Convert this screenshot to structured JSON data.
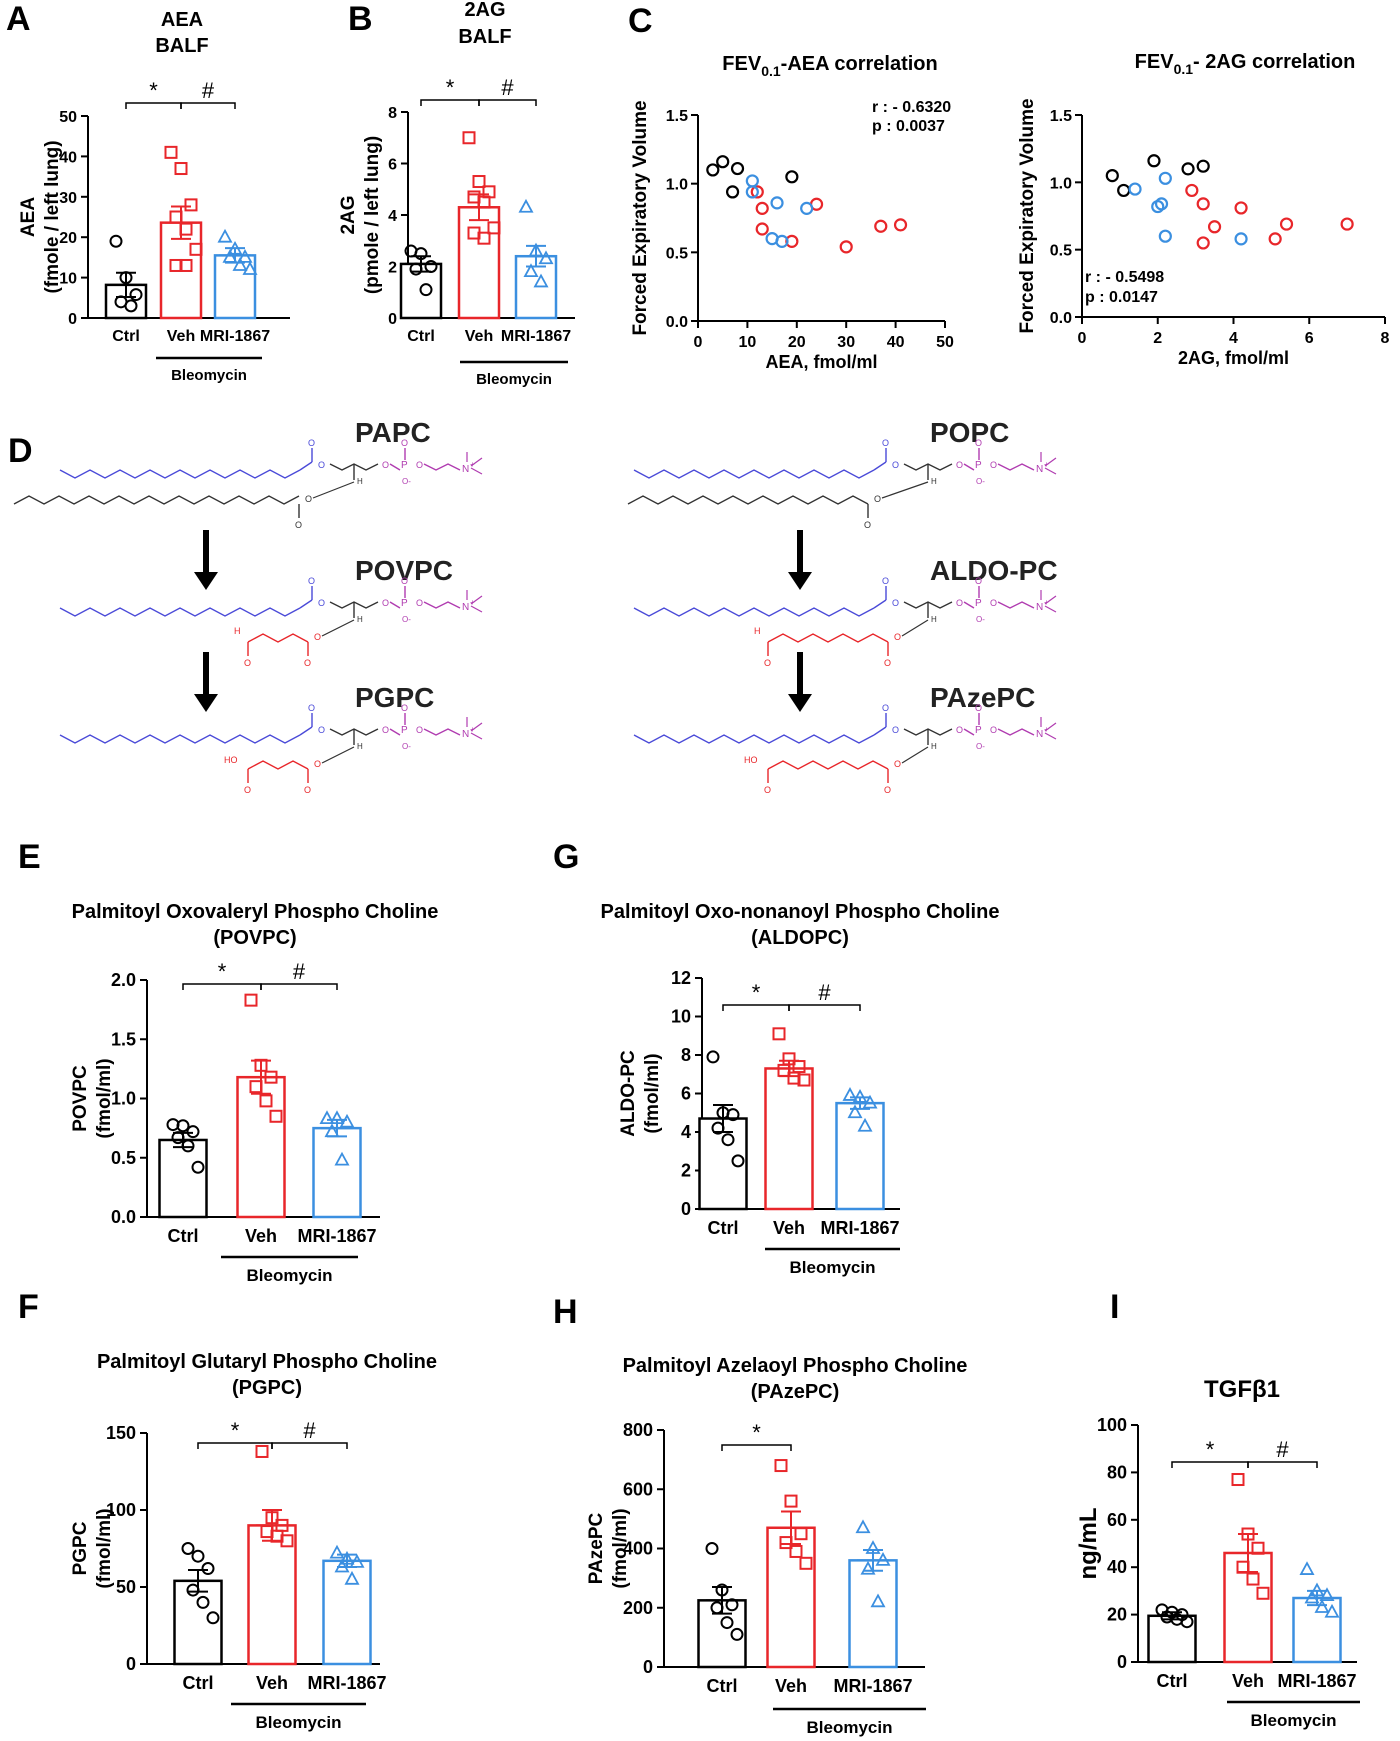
{
  "panel_letters": [
    "A",
    "B",
    "C",
    "D",
    "E",
    "F",
    "G",
    "H",
    "I"
  ],
  "colors": {
    "ctrl": "#000000",
    "veh": "#e8262a",
    "mri": "#3b8fe0",
    "chain_blue": "#4a4ad8",
    "headgroup": "#b03cb0",
    "oxidized": "#e8262a"
  },
  "group_labels": {
    "ctrl": "Ctrl",
    "veh": "Veh",
    "mri": "MRI-1867",
    "bleomycin": "Bleomycin"
  },
  "significance": {
    "star": "*",
    "hash": "#"
  },
  "chart_data": [
    {
      "id": "A",
      "type": "bar",
      "title": "AEA\nBALF",
      "ylabel": "AEA\n(fmole / left lung)",
      "ylim": [
        0,
        50
      ],
      "yticks": [
        0,
        10,
        20,
        30,
        40,
        50
      ],
      "categories": [
        "Ctrl",
        "Veh",
        "MRI-1867"
      ],
      "means": [
        8.2,
        23.6,
        15.5
      ],
      "sem": [
        3.0,
        4.0,
        1.8
      ],
      "points": [
        [
          19.0,
          10.0,
          5.8,
          4.0,
          3.0
        ],
        [
          41.0,
          37.0,
          28.0,
          25.0,
          22.0,
          17.0,
          13.0,
          13.0
        ],
        [
          20.0,
          17.0,
          15.0,
          15.0,
          13.0,
          12.0
        ]
      ],
      "sig": [
        {
          "from": 0,
          "to": 1,
          "label": "*"
        },
        {
          "from": 1,
          "to": 2,
          "label": "#"
        }
      ]
    },
    {
      "id": "B",
      "type": "bar",
      "title": "2AG\nBALF",
      "ylabel": "2AG\n(pmole / left lung)",
      "ylim": [
        0,
        8
      ],
      "yticks": [
        0,
        2,
        4,
        6,
        8
      ],
      "categories": [
        "Ctrl",
        "Veh",
        "MRI-1867"
      ],
      "means": [
        2.1,
        4.3,
        2.4
      ],
      "sem": [
        0.3,
        0.5,
        0.4
      ],
      "points": [
        [
          2.6,
          2.5,
          2.0,
          1.9,
          1.1
        ],
        [
          7.0,
          5.3,
          4.9,
          4.7,
          4.5,
          3.5,
          3.3,
          3.1
        ],
        [
          4.3,
          2.6,
          2.3,
          1.8,
          1.4
        ]
      ],
      "sig": [
        {
          "from": 0,
          "to": 1,
          "label": "*"
        },
        {
          "from": 1,
          "to": 2,
          "label": "#"
        }
      ]
    },
    {
      "id": "C1",
      "type": "scatter",
      "title": "FEV0.1-AEA correlation",
      "xlabel": "AEA, fmol/ml",
      "ylabel": "Forced Expiratory Volume",
      "xlim": [
        0,
        50
      ],
      "xticks": [
        0,
        10,
        20,
        30,
        40,
        50
      ],
      "ylim": [
        0,
        1.5
      ],
      "yticks": [
        0.0,
        0.5,
        1.0,
        1.5
      ],
      "annotation": [
        "r : - 0.6320",
        "p : 0.0037"
      ],
      "series": [
        {
          "color": "ctrl",
          "points": [
            [
              3,
              1.1
            ],
            [
              5,
              1.16
            ],
            [
              7,
              0.94
            ],
            [
              8,
              1.11
            ],
            [
              19,
              1.05
            ]
          ]
        },
        {
          "color": "veh",
          "points": [
            [
              12,
              0.94
            ],
            [
              13,
              0.82
            ],
            [
              13,
              0.67
            ],
            [
              19,
              0.58
            ],
            [
              24,
              0.85
            ],
            [
              30,
              0.54
            ],
            [
              37,
              0.69
            ],
            [
              41,
              0.7
            ]
          ]
        },
        {
          "color": "mri",
          "points": [
            [
              11,
              0.94
            ],
            [
              11,
              1.02
            ],
            [
              15,
              0.6
            ],
            [
              16,
              0.86
            ],
            [
              17,
              0.58
            ],
            [
              22,
              0.82
            ]
          ]
        }
      ]
    },
    {
      "id": "C2",
      "type": "scatter",
      "title": "FEV0.1- 2AG correlation",
      "xlabel": "2AG, fmol/ml",
      "ylabel": "Forced Expiratory Volume",
      "xlim": [
        0,
        8
      ],
      "xticks": [
        0,
        2,
        4,
        6,
        8
      ],
      "ylim": [
        0,
        1.5
      ],
      "yticks": [
        0.0,
        0.5,
        1.0,
        1.5
      ],
      "annotation": [
        "r : - 0.5498",
        "p : 0.0147"
      ],
      "series": [
        {
          "color": "ctrl",
          "points": [
            [
              0.8,
              1.05
            ],
            [
              1.1,
              0.94
            ],
            [
              1.9,
              1.16
            ],
            [
              2.8,
              1.1
            ],
            [
              3.2,
              1.12
            ]
          ]
        },
        {
          "color": "veh",
          "points": [
            [
              2.9,
              0.94
            ],
            [
              3.2,
              0.84
            ],
            [
              3.2,
              0.55
            ],
            [
              3.5,
              0.67
            ],
            [
              4.2,
              0.81
            ],
            [
              5.1,
              0.58
            ],
            [
              5.4,
              0.69
            ],
            [
              7.0,
              0.69
            ]
          ]
        },
        {
          "color": "mri",
          "points": [
            [
              1.4,
              0.95
            ],
            [
              2.0,
              0.82
            ],
            [
              2.1,
              0.84
            ],
            [
              2.2,
              1.03
            ],
            [
              2.2,
              0.6
            ],
            [
              4.2,
              0.58
            ]
          ]
        }
      ]
    },
    {
      "id": "E",
      "type": "bar",
      "title": "Palmitoyl Oxovaleryl Phospho Choline\n(POVPC)",
      "ylabel": "POVPC\n(fmol/ml)",
      "ylim": [
        0,
        2.0
      ],
      "yticks": [
        0.0,
        0.5,
        1.0,
        1.5,
        2.0
      ],
      "decimals": 1,
      "categories": [
        "Ctrl",
        "Veh",
        "MRI-1867"
      ],
      "means": [
        0.65,
        1.18,
        0.75
      ],
      "sem": [
        0.06,
        0.14,
        0.07
      ],
      "points": [
        [
          0.78,
          0.77,
          0.72,
          0.67,
          0.6,
          0.42
        ],
        [
          1.83,
          1.28,
          1.18,
          1.1,
          0.98,
          0.85
        ],
        [
          0.83,
          0.83,
          0.8,
          0.72,
          0.48
        ]
      ],
      "sig": [
        {
          "from": 0,
          "to": 1,
          "label": "*"
        },
        {
          "from": 1,
          "to": 2,
          "label": "#"
        }
      ]
    },
    {
      "id": "G",
      "type": "bar",
      "title": "Palmitoyl Oxo-nonanoyl Phospho Choline\n(ALDOPC)",
      "ylabel": "ALDO-PC\n(fmol/ml)",
      "ylim": [
        0,
        12
      ],
      "yticks": [
        0,
        2,
        4,
        6,
        8,
        10,
        12
      ],
      "categories": [
        "Ctrl",
        "Veh",
        "MRI-1867"
      ],
      "means": [
        4.7,
        7.3,
        5.5
      ],
      "sem": [
        0.7,
        0.4,
        0.3
      ],
      "points": [
        [
          7.9,
          5.0,
          4.9,
          4.2,
          3.6,
          2.5
        ],
        [
          9.1,
          7.8,
          7.4,
          7.2,
          6.8,
          6.7
        ],
        [
          5.9,
          5.8,
          5.5,
          5.0,
          4.3
        ]
      ],
      "sig": [
        {
          "from": 0,
          "to": 1,
          "label": "*"
        },
        {
          "from": 1,
          "to": 2,
          "label": "#"
        }
      ]
    },
    {
      "id": "F",
      "type": "bar",
      "title": "Palmitoyl Glutaryl Phospho Choline\n(PGPC)",
      "ylabel": "PGPC\n(fmol/ml)",
      "ylim": [
        0,
        150
      ],
      "yticks": [
        0,
        50,
        100,
        150
      ],
      "categories": [
        "Ctrl",
        "Veh",
        "MRI-1867"
      ],
      "means": [
        54,
        90,
        67
      ],
      "sem": [
        7,
        10,
        4
      ],
      "points": [
        [
          75,
          70,
          62,
          48,
          40,
          30
        ],
        [
          138,
          95,
          90,
          86,
          83,
          80
        ],
        [
          72,
          68,
          66,
          63,
          55
        ]
      ],
      "sig": [
        {
          "from": 0,
          "to": 1,
          "label": "*"
        },
        {
          "from": 1,
          "to": 2,
          "label": "#"
        }
      ]
    },
    {
      "id": "H",
      "type": "bar",
      "title": "Palmitoyl Azelaoyl Phospho Choline\n(PAzePC)",
      "ylabel": "PAzePC\n(fmol/ml)",
      "ylim": [
        0,
        800
      ],
      "yticks": [
        0,
        200,
        400,
        600,
        800
      ],
      "categories": [
        "Ctrl",
        "Veh",
        "MRI-1867"
      ],
      "means": [
        225,
        470,
        360
      ],
      "sem": [
        45,
        55,
        35
      ],
      "points": [
        [
          400,
          260,
          210,
          200,
          150,
          110
        ],
        [
          680,
          560,
          450,
          420,
          390,
          350
        ],
        [
          470,
          400,
          360,
          330,
          220
        ]
      ],
      "sig": [
        {
          "from": 0,
          "to": 1,
          "label": "*"
        }
      ]
    },
    {
      "id": "I",
      "type": "bar",
      "title": "TGFβ1",
      "ylabel": "ng/mL",
      "ylim": [
        0,
        100
      ],
      "yticks": [
        0,
        20,
        40,
        60,
        80,
        100
      ],
      "categories": [
        "Ctrl",
        "Veh",
        "MRI-1867"
      ],
      "means": [
        19.5,
        46,
        27
      ],
      "sem": [
        1.5,
        8,
        3
      ],
      "points": [
        [
          22,
          21,
          20,
          19,
          18,
          17
        ],
        [
          77,
          54,
          48,
          40,
          35,
          29
        ],
        [
          39,
          30,
          28,
          27,
          23,
          21
        ]
      ],
      "sig": [
        {
          "from": 0,
          "to": 1,
          "label": "*"
        },
        {
          "from": 1,
          "to": 2,
          "label": "#"
        }
      ]
    }
  ],
  "scheme": {
    "titles": {
      "papc": "PAPC",
      "povpc": "POVPC",
      "pgpc": "PGPC",
      "popc": "POPC",
      "aldopc": "ALDO-PC",
      "pazepc": "PAzePC"
    },
    "atoms": {
      "o": "O",
      "h": "H",
      "p": "P",
      "n": "N",
      "ho": "HO",
      "oh": "OH",
      "o_minus": "O-",
      "plus": "+"
    }
  }
}
